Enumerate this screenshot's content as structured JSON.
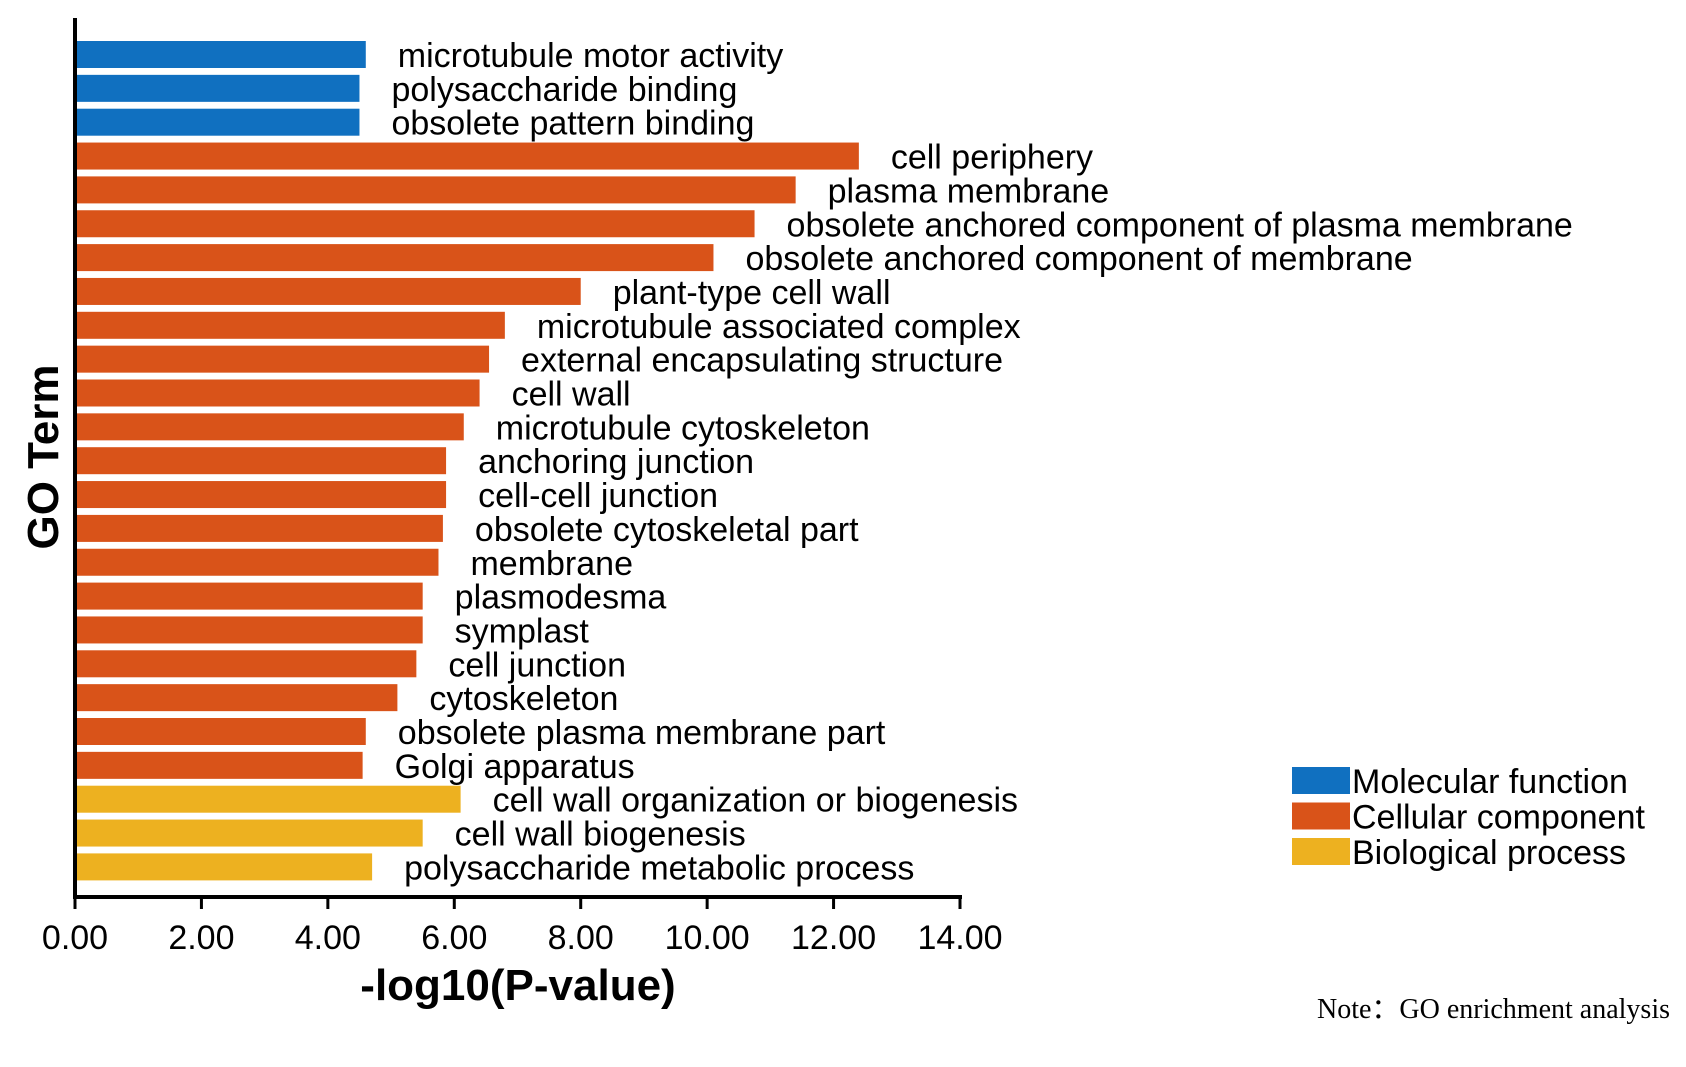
{
  "chart_data": {
    "type": "bar",
    "orientation": "horizontal",
    "xlabel": "-log10(P-value)",
    "ylabel": "GO Term",
    "xlim": [
      0,
      14
    ],
    "xticks": [
      "0.00",
      "2.00",
      "4.00",
      "6.00",
      "8.00",
      "10.00",
      "12.00",
      "14.00"
    ],
    "xtick_values": [
      0,
      2,
      4,
      6,
      8,
      10,
      12,
      14
    ],
    "grid": false,
    "legend_position": "bottom-right",
    "legend": [
      {
        "name": "Molecular function",
        "color": "#1070C0"
      },
      {
        "name": "Cellular component",
        "color": "#D95319"
      },
      {
        "name": "Biological process",
        "color": "#EDB120"
      }
    ],
    "bars": [
      {
        "label": "microtubule motor activity",
        "value": 4.6,
        "group": 0
      },
      {
        "label": "polysaccharide binding",
        "value": 4.5,
        "group": 0
      },
      {
        "label": "obsolete pattern binding",
        "value": 4.5,
        "group": 0
      },
      {
        "label": "cell periphery",
        "value": 12.4,
        "group": 1
      },
      {
        "label": "plasma membrane",
        "value": 11.4,
        "group": 1
      },
      {
        "label": "obsolete anchored component of plasma membrane",
        "value": 10.75,
        "group": 1
      },
      {
        "label": "obsolete anchored component of membrane",
        "value": 10.1,
        "group": 1
      },
      {
        "label": "plant-type cell wall",
        "value": 8.0,
        "group": 1
      },
      {
        "label": "microtubule associated complex",
        "value": 6.8,
        "group": 1
      },
      {
        "label": "external encapsulating structure",
        "value": 6.55,
        "group": 1
      },
      {
        "label": "cell wall",
        "value": 6.4,
        "group": 1
      },
      {
        "label": "microtubule cytoskeleton",
        "value": 6.15,
        "group": 1
      },
      {
        "label": "anchoring junction",
        "value": 5.87,
        "group": 1
      },
      {
        "label": "cell-cell junction",
        "value": 5.87,
        "group": 1
      },
      {
        "label": "obsolete cytoskeletal part",
        "value": 5.82,
        "group": 1
      },
      {
        "label": "membrane",
        "value": 5.75,
        "group": 1
      },
      {
        "label": "plasmodesma",
        "value": 5.5,
        "group": 1
      },
      {
        "label": "symplast",
        "value": 5.5,
        "group": 1
      },
      {
        "label": "cell junction",
        "value": 5.4,
        "group": 1
      },
      {
        "label": "cytoskeleton",
        "value": 5.1,
        "group": 1
      },
      {
        "label": "obsolete plasma membrane part",
        "value": 4.6,
        "group": 1
      },
      {
        "label": "Golgi apparatus",
        "value": 4.55,
        "group": 1
      },
      {
        "label": "cell wall organization or biogenesis",
        "value": 6.1,
        "group": 2
      },
      {
        "label": "cell wall biogenesis",
        "value": 5.5,
        "group": 2
      },
      {
        "label": "polysaccharide metabolic process",
        "value": 4.7,
        "group": 2
      }
    ]
  },
  "note": "Note：GO enrichment analysis"
}
